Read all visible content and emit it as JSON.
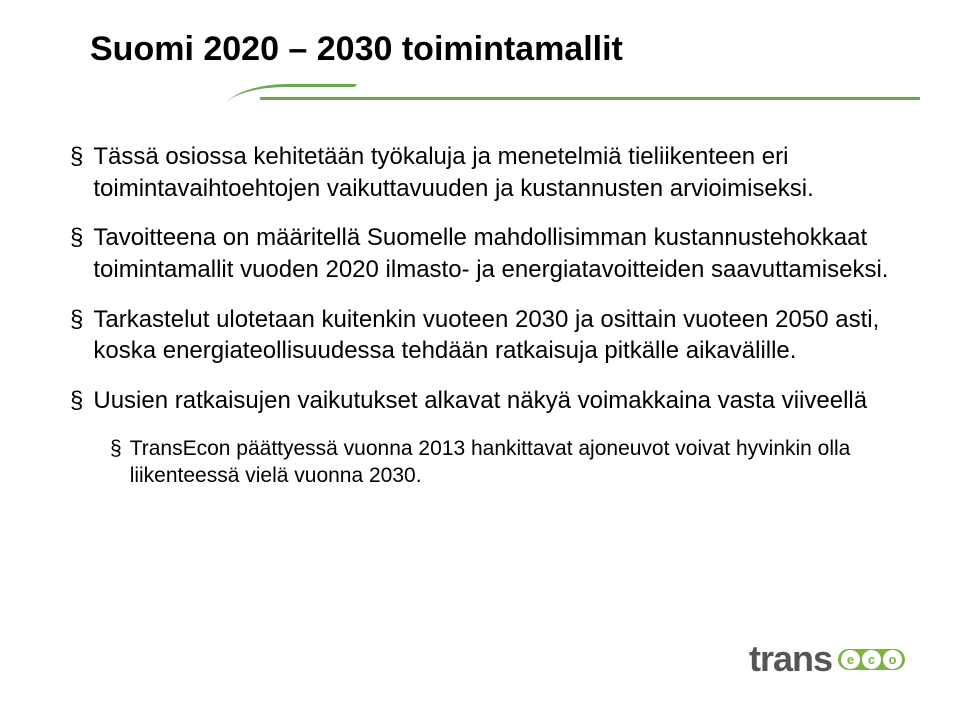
{
  "title": "Suomi 2020 – 2030 toimintamallit",
  "divider": {
    "line_color": "#6aa84f"
  },
  "bullets": [
    {
      "level": 1,
      "text": "Tässä osiossa kehitetään työkaluja ja menetelmiä tieliikenteen eri toimintavaihtoehtojen vaikuttavuuden ja kustannusten arvioimiseksi."
    },
    {
      "level": 1,
      "text": "Tavoitteena on määritellä Suomelle mahdollisimman kustannustehokkaat toimintamallit vuoden 2020 ilmasto- ja energiatavoitteiden saavuttamiseksi."
    },
    {
      "level": 1,
      "text": "Tarkastelut ulotetaan kuitenkin vuoteen 2030 ja osittain vuoteen 2050 asti, koska energiateollisuudessa tehdään ratkaisuja pitkälle aikavälille."
    },
    {
      "level": 1,
      "text": "Uusien ratkaisujen vaikutukset alkavat näkyä voimakkaina vasta viiveellä"
    },
    {
      "level": 2,
      "text": "TransEcon päättyessä vuonna 2013 hankittavat ajoneuvot voivat hyvinkin olla liikenteessä vielä vuonna 2030."
    }
  ],
  "bullet_marker": "§",
  "logo": {
    "text": "trans",
    "eco_letters": [
      "e",
      "c",
      "o"
    ],
    "text_color": "#555558",
    "badge_color": "#7cb342"
  },
  "colors": {
    "background": "#ffffff",
    "text": "#000000"
  }
}
